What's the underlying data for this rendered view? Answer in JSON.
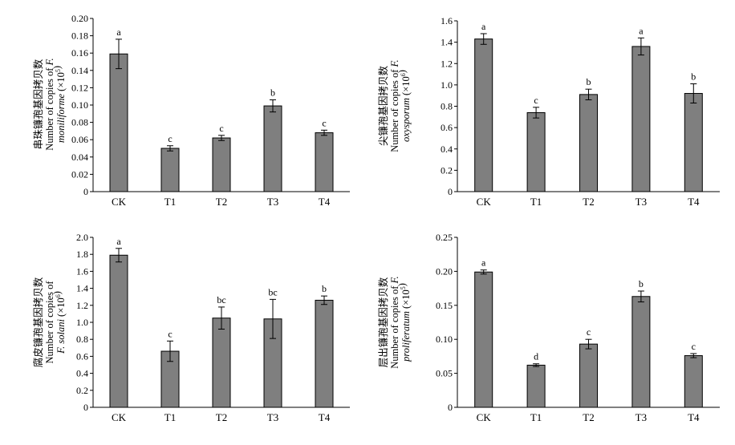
{
  "chart_data": [
    {
      "type": "bar",
      "categories": [
        "CK",
        "T1",
        "T2",
        "T3",
        "T4"
      ],
      "values": [
        0.159,
        0.05,
        0.062,
        0.099,
        0.068
      ],
      "errors": [
        0.017,
        0.003,
        0.003,
        0.007,
        0.003
      ],
      "significance": [
        "a",
        "c",
        "c",
        "b",
        "c"
      ],
      "ylim": [
        0,
        0.2
      ],
      "yticks": [
        "0",
        "0.02",
        "0.04",
        "0.06",
        "0.08",
        "0.10",
        "0.12",
        "0.14",
        "0.16",
        "0.18",
        "0.20"
      ],
      "ylabel_lines": [
        [
          {
            "t": "串珠镰孢基因拷贝数"
          }
        ],
        [
          {
            "t": "Number of copies of "
          },
          {
            "t": "F.",
            "i": true
          }
        ],
        [
          {
            "t": "moniliforme",
            "i": true
          },
          {
            "t": " (×10"
          },
          {
            "t": "5",
            "sup": true
          },
          {
            "t": ")"
          }
        ]
      ],
      "bar_color": "#7f7f7f"
    },
    {
      "type": "bar",
      "categories": [
        "CK",
        "T1",
        "T2",
        "T3",
        "T4"
      ],
      "values": [
        1.43,
        0.74,
        0.91,
        1.36,
        0.92
      ],
      "errors": [
        0.05,
        0.05,
        0.05,
        0.08,
        0.09
      ],
      "significance": [
        "a",
        "c",
        "b",
        "a",
        "b"
      ],
      "ylim": [
        0,
        1.6
      ],
      "yticks": [
        "0",
        "0.2",
        "0.4",
        "0.6",
        "0.8",
        "1.0",
        "1.2",
        "1.4",
        "1.6"
      ],
      "ylabel_lines": [
        [
          {
            "t": "尖镰孢基因拷贝数"
          }
        ],
        [
          {
            "t": "Number of copies of "
          },
          {
            "t": "F.",
            "i": true
          }
        ],
        [
          {
            "t": "oxysporum",
            "i": true
          },
          {
            "t": " (×10"
          },
          {
            "t": "6",
            "sup": true
          },
          {
            "t": ")"
          }
        ]
      ],
      "bar_color": "#7f7f7f"
    },
    {
      "type": "bar",
      "categories": [
        "CK",
        "T1",
        "T2",
        "T3",
        "T4"
      ],
      "values": [
        1.79,
        0.66,
        1.05,
        1.04,
        1.26
      ],
      "errors": [
        0.08,
        0.12,
        0.13,
        0.23,
        0.05
      ],
      "significance": [
        "a",
        "c",
        "bc",
        "bc",
        "b"
      ],
      "ylim": [
        0,
        2.0
      ],
      "yticks": [
        "0",
        "0.2",
        "0.4",
        "0.6",
        "0.8",
        "1.0",
        "1.2",
        "1.4",
        "1.6",
        "1.8",
        "2.0"
      ],
      "ylabel_lines": [
        [
          {
            "t": "腐皮镰孢基因拷贝数"
          }
        ],
        [
          {
            "t": "Number of copies of"
          }
        ],
        [
          {
            "t": "F. solani",
            "i": true
          },
          {
            "t": " (×10"
          },
          {
            "t": "6",
            "sup": true
          },
          {
            "t": ")"
          }
        ]
      ],
      "bar_color": "#7f7f7f"
    },
    {
      "type": "bar",
      "categories": [
        "CK",
        "T1",
        "T2",
        "T3",
        "T4"
      ],
      "values": [
        0.199,
        0.062,
        0.093,
        0.163,
        0.076
      ],
      "errors": [
        0.003,
        0.002,
        0.007,
        0.008,
        0.003
      ],
      "significance": [
        "a",
        "d",
        "c",
        "b",
        "c"
      ],
      "ylim": [
        0,
        0.25
      ],
      "yticks": [
        "0",
        "0.05",
        "0.10",
        "0.15",
        "0.20",
        "0.25"
      ],
      "ylabel_lines": [
        [
          {
            "t": "层出镰孢基因拷贝数"
          }
        ],
        [
          {
            "t": "Number of copies of "
          },
          {
            "t": "F.",
            "i": true
          }
        ],
        [
          {
            "t": "proliferatum",
            "i": true
          },
          {
            "t": " (×10"
          },
          {
            "t": "5",
            "sup": true
          },
          {
            "t": ")"
          }
        ]
      ],
      "bar_color": "#7f7f7f"
    }
  ]
}
